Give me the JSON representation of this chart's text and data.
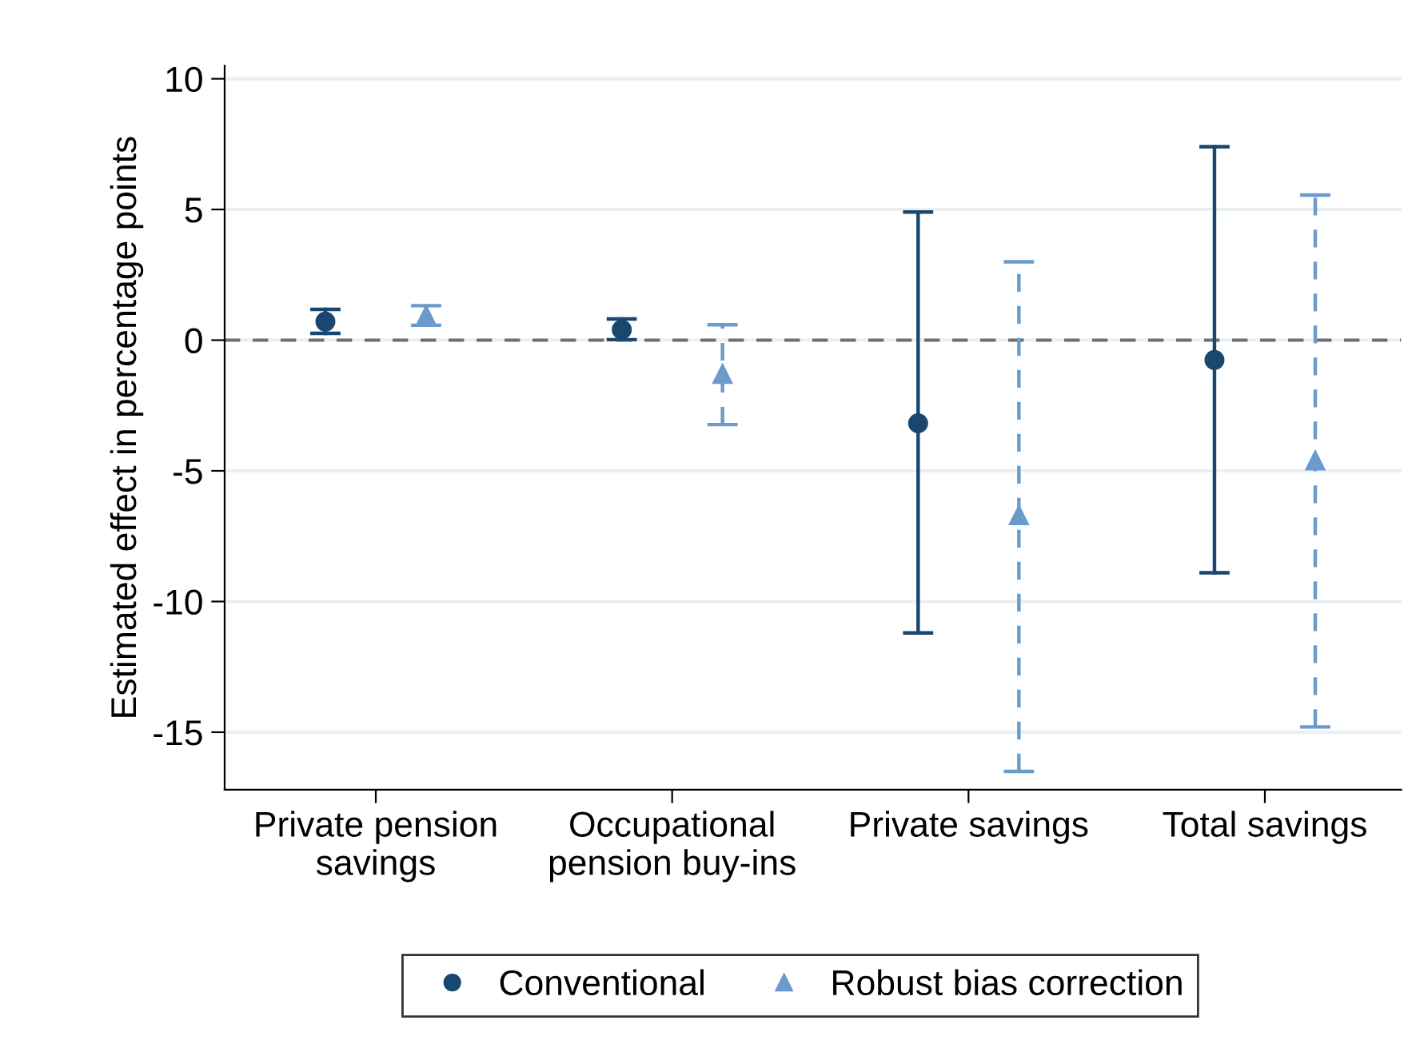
{
  "chart_data": {
    "type": "scatter",
    "ylabel": "Estimated effect in percentage points",
    "categories": [
      "Private pension\nsavings",
      "Occupational\npension buy-ins",
      "Private savings",
      "Total savings"
    ],
    "series": [
      {
        "name": "Conventional",
        "color": "#1a476f",
        "marker": "circle",
        "line_style": "solid",
        "values": [
          0.71,
          0.4,
          -3.18,
          -0.76
        ],
        "errors": [
          [
            0.26,
            1.18
          ],
          [
            0.02,
            0.81
          ],
          [
            -11.2,
            4.9
          ],
          [
            -8.9,
            7.4
          ]
        ]
      },
      {
        "name": "Robust bias correction",
        "color": "#6a9bcc",
        "marker": "triangle",
        "line_style": "dashed",
        "values": [
          0.95,
          -1.29,
          -6.7,
          -4.6
        ],
        "errors": [
          [
            0.57,
            1.32
          ],
          [
            -3.23,
            0.59
          ],
          [
            -16.5,
            3.0
          ],
          [
            -14.8,
            5.55
          ]
        ]
      }
    ],
    "ylim": [
      -17.2,
      10.5
    ],
    "yticks": [
      -15,
      -10,
      -5,
      0,
      5,
      10
    ],
    "ref_lines": [
      {
        "axis": "y",
        "value": 0,
        "color": "#707070",
        "line_style": "dashed"
      }
    ],
    "grid": "y",
    "legend": "bottom"
  }
}
